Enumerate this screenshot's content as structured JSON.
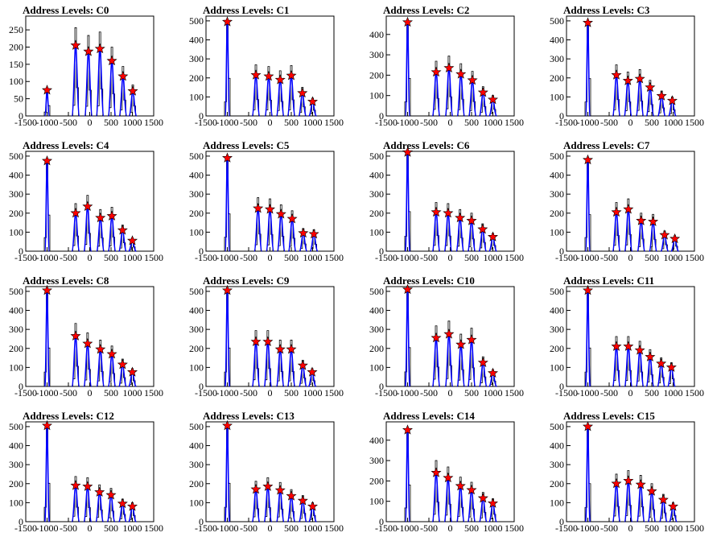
{
  "chart_data": [
    {
      "type": "bar",
      "title": "Address Levels: C0",
      "xlim": [
        -1500,
        1500
      ],
      "ylim": [
        0,
        290
      ],
      "yticks": [
        0,
        50,
        100,
        150,
        200,
        250
      ],
      "xticks": [
        -1500,
        -1000,
        -500,
        0,
        500,
        1000,
        1500
      ],
      "peaks": [
        {
          "x": -1000,
          "y": 75
        },
        {
          "x": -330,
          "y": 205
        },
        {
          "x": -30,
          "y": 187
        },
        {
          "x": 240,
          "y": 195
        },
        {
          "x": 520,
          "y": 160
        },
        {
          "x": 780,
          "y": 115
        },
        {
          "x": 1010,
          "y": 72
        }
      ]
    },
    {
      "type": "bar",
      "title": "Address Levels: C1",
      "xlim": [
        -1500,
        1500
      ],
      "ylim": [
        0,
        525
      ],
      "yticks": [
        0,
        100,
        200,
        300,
        400,
        500
      ],
      "xticks": [
        -1500,
        -1000,
        -500,
        0,
        500,
        1000,
        1500
      ],
      "peaks": [
        {
          "x": -1000,
          "y": 495
        },
        {
          "x": -330,
          "y": 215
        },
        {
          "x": -30,
          "y": 208
        },
        {
          "x": 240,
          "y": 190
        },
        {
          "x": 500,
          "y": 212
        },
        {
          "x": 760,
          "y": 120
        },
        {
          "x": 1000,
          "y": 75
        }
      ]
    },
    {
      "type": "bar",
      "title": "Address Levels: C2",
      "xlim": [
        -1500,
        1500
      ],
      "ylim": [
        0,
        490
      ],
      "yticks": [
        0,
        100,
        200,
        300,
        400
      ],
      "xticks": [
        -1500,
        -1000,
        -500,
        0,
        500,
        1000,
        1500
      ],
      "peaks": [
        {
          "x": -1000,
          "y": 460
        },
        {
          "x": -330,
          "y": 215
        },
        {
          "x": -30,
          "y": 235
        },
        {
          "x": 250,
          "y": 205
        },
        {
          "x": 520,
          "y": 175
        },
        {
          "x": 770,
          "y": 115
        },
        {
          "x": 1000,
          "y": 80
        }
      ]
    },
    {
      "type": "bar",
      "title": "Address Levels: C3",
      "xlim": [
        -1500,
        1500
      ],
      "ylim": [
        0,
        525
      ],
      "yticks": [
        0,
        100,
        200,
        300,
        400,
        500
      ],
      "xticks": [
        -1500,
        -1000,
        -500,
        0,
        500,
        1000,
        1500
      ],
      "peaks": [
        {
          "x": -1000,
          "y": 490
        },
        {
          "x": -330,
          "y": 215
        },
        {
          "x": -60,
          "y": 185
        },
        {
          "x": 220,
          "y": 195
        },
        {
          "x": 460,
          "y": 150
        },
        {
          "x": 730,
          "y": 105
        },
        {
          "x": 980,
          "y": 80
        }
      ]
    },
    {
      "type": "bar",
      "title": "Address Levels: C4",
      "xlim": [
        -1500,
        1500
      ],
      "ylim": [
        0,
        525
      ],
      "yticks": [
        0,
        100,
        200,
        300,
        400,
        500
      ],
      "xticks": [
        -1500,
        -1000,
        -500,
        0,
        500,
        1000,
        1500
      ],
      "peaks": [
        {
          "x": -1000,
          "y": 475
        },
        {
          "x": -330,
          "y": 200
        },
        {
          "x": -50,
          "y": 235
        },
        {
          "x": 250,
          "y": 175
        },
        {
          "x": 520,
          "y": 185
        },
        {
          "x": 770,
          "y": 110
        },
        {
          "x": 1000,
          "y": 55
        }
      ]
    },
    {
      "type": "bar",
      "title": "Address Levels: C5",
      "xlim": [
        -1500,
        1500
      ],
      "ylim": [
        0,
        525
      ],
      "yticks": [
        0,
        100,
        200,
        300,
        400,
        500
      ],
      "xticks": [
        -1500,
        -1000,
        -500,
        0,
        500,
        1000,
        1500
      ],
      "peaks": [
        {
          "x": -1000,
          "y": 490
        },
        {
          "x": -280,
          "y": 225
        },
        {
          "x": 0,
          "y": 220
        },
        {
          "x": 260,
          "y": 195
        },
        {
          "x": 520,
          "y": 170
        },
        {
          "x": 780,
          "y": 95
        },
        {
          "x": 1030,
          "y": 90
        }
      ]
    },
    {
      "type": "bar",
      "title": "Address Levels: C6",
      "xlim": [
        -1500,
        1500
      ],
      "ylim": [
        0,
        525
      ],
      "yticks": [
        0,
        100,
        200,
        300,
        400,
        500
      ],
      "xticks": [
        -1500,
        -1000,
        -500,
        0,
        500,
        1000,
        1500
      ],
      "peaks": [
        {
          "x": -1000,
          "y": 520
        },
        {
          "x": -330,
          "y": 205
        },
        {
          "x": -50,
          "y": 200
        },
        {
          "x": 230,
          "y": 175
        },
        {
          "x": 500,
          "y": 160
        },
        {
          "x": 760,
          "y": 115
        },
        {
          "x": 1000,
          "y": 75
        }
      ]
    },
    {
      "type": "bar",
      "title": "Address Levels: C7",
      "xlim": [
        -1500,
        1500
      ],
      "ylim": [
        0,
        525
      ],
      "yticks": [
        0,
        100,
        200,
        300,
        400,
        500
      ],
      "xticks": [
        -1500,
        -1000,
        -500,
        0,
        500,
        1000,
        1500
      ],
      "peaks": [
        {
          "x": -1000,
          "y": 480
        },
        {
          "x": -330,
          "y": 205
        },
        {
          "x": -50,
          "y": 220
        },
        {
          "x": 250,
          "y": 160
        },
        {
          "x": 530,
          "y": 155
        },
        {
          "x": 800,
          "y": 85
        },
        {
          "x": 1040,
          "y": 65
        }
      ]
    },
    {
      "type": "bar",
      "title": "Address Levels: C8",
      "xlim": [
        -1500,
        1500
      ],
      "ylim": [
        0,
        525
      ],
      "yticks": [
        0,
        100,
        200,
        300,
        400,
        500
      ],
      "xticks": [
        -1500,
        -1000,
        -500,
        0,
        500,
        1000,
        1500
      ],
      "peaks": [
        {
          "x": -1000,
          "y": 505
        },
        {
          "x": -330,
          "y": 265
        },
        {
          "x": -50,
          "y": 225
        },
        {
          "x": 250,
          "y": 195
        },
        {
          "x": 520,
          "y": 170
        },
        {
          "x": 770,
          "y": 115
        },
        {
          "x": 1000,
          "y": 75
        }
      ]
    },
    {
      "type": "bar",
      "title": "Address Levels: C9",
      "xlim": [
        -1500,
        1500
      ],
      "ylim": [
        0,
        525
      ],
      "yticks": [
        0,
        100,
        200,
        300,
        400,
        500
      ],
      "xticks": [
        -1500,
        -1000,
        -500,
        0,
        500,
        1000,
        1500
      ],
      "peaks": [
        {
          "x": -1000,
          "y": 505
        },
        {
          "x": -330,
          "y": 235
        },
        {
          "x": -50,
          "y": 235
        },
        {
          "x": 240,
          "y": 195
        },
        {
          "x": 500,
          "y": 195
        },
        {
          "x": 770,
          "y": 110
        },
        {
          "x": 990,
          "y": 75
        }
      ]
    },
    {
      "type": "bar",
      "title": "Address Levels: C10",
      "xlim": [
        -1500,
        1500
      ],
      "ylim": [
        0,
        525
      ],
      "yticks": [
        0,
        100,
        200,
        300,
        400,
        500
      ],
      "xticks": [
        -1500,
        -1000,
        -500,
        0,
        500,
        1000,
        1500
      ],
      "peaks": [
        {
          "x": -1000,
          "y": 510
        },
        {
          "x": -330,
          "y": 255
        },
        {
          "x": -30,
          "y": 275
        },
        {
          "x": 250,
          "y": 220
        },
        {
          "x": 500,
          "y": 245
        },
        {
          "x": 770,
          "y": 125
        },
        {
          "x": 1000,
          "y": 70
        }
      ]
    },
    {
      "type": "bar",
      "title": "Address Levels: C11",
      "xlim": [
        -1500,
        1500
      ],
      "ylim": [
        0,
        525
      ],
      "yticks": [
        0,
        100,
        200,
        300,
        400,
        500
      ],
      "xticks": [
        -1500,
        -1000,
        -500,
        0,
        500,
        1000,
        1500
      ],
      "peaks": [
        {
          "x": -1000,
          "y": 505
        },
        {
          "x": -330,
          "y": 210
        },
        {
          "x": -50,
          "y": 210
        },
        {
          "x": 220,
          "y": 190
        },
        {
          "x": 460,
          "y": 155
        },
        {
          "x": 720,
          "y": 120
        },
        {
          "x": 960,
          "y": 100
        }
      ]
    },
    {
      "type": "bar",
      "title": "Address Levels: C12",
      "xlim": [
        -1500,
        1500
      ],
      "ylim": [
        0,
        525
      ],
      "yticks": [
        0,
        100,
        200,
        300,
        400,
        500
      ],
      "xticks": [
        -1500,
        -1000,
        -500,
        0,
        500,
        1000,
        1500
      ],
      "peaks": [
        {
          "x": -1000,
          "y": 505
        },
        {
          "x": -330,
          "y": 190
        },
        {
          "x": -50,
          "y": 185
        },
        {
          "x": 230,
          "y": 155
        },
        {
          "x": 500,
          "y": 140
        },
        {
          "x": 770,
          "y": 95
        },
        {
          "x": 1000,
          "y": 80
        }
      ]
    },
    {
      "type": "bar",
      "title": "Address Levels: C13",
      "xlim": [
        -1500,
        1500
      ],
      "ylim": [
        0,
        525
      ],
      "yticks": [
        0,
        100,
        200,
        300,
        400,
        500
      ],
      "xticks": [
        -1500,
        -1000,
        -500,
        0,
        500,
        1000,
        1500
      ],
      "peaks": [
        {
          "x": -1000,
          "y": 505
        },
        {
          "x": -330,
          "y": 170
        },
        {
          "x": -50,
          "y": 185
        },
        {
          "x": 240,
          "y": 165
        },
        {
          "x": 500,
          "y": 135
        },
        {
          "x": 770,
          "y": 110
        },
        {
          "x": 1000,
          "y": 80
        }
      ]
    },
    {
      "type": "bar",
      "title": "Address Levels: C14",
      "xlim": [
        -1500,
        1500
      ],
      "ylim": [
        0,
        490
      ],
      "yticks": [
        0,
        100,
        200,
        300,
        400
      ],
      "xticks": [
        -1500,
        -1000,
        -500,
        0,
        500,
        1000,
        1500
      ],
      "peaks": [
        {
          "x": -1000,
          "y": 450
        },
        {
          "x": -330,
          "y": 240
        },
        {
          "x": -50,
          "y": 215
        },
        {
          "x": 240,
          "y": 175
        },
        {
          "x": 500,
          "y": 155
        },
        {
          "x": 770,
          "y": 115
        },
        {
          "x": 1000,
          "y": 90
        }
      ]
    },
    {
      "type": "bar",
      "title": "Address Levels: C15",
      "xlim": [
        -1500,
        1500
      ],
      "ylim": [
        0,
        525
      ],
      "yticks": [
        0,
        100,
        200,
        300,
        400,
        500
      ],
      "xticks": [
        -1500,
        -1000,
        -500,
        0,
        500,
        1000,
        1500
      ],
      "peaks": [
        {
          "x": -1000,
          "y": 500
        },
        {
          "x": -330,
          "y": 200
        },
        {
          "x": -50,
          "y": 215
        },
        {
          "x": 240,
          "y": 195
        },
        {
          "x": 500,
          "y": 160
        },
        {
          "x": 770,
          "y": 115
        },
        {
          "x": 1000,
          "y": 80
        }
      ]
    }
  ],
  "colors": {
    "histogram": "#000000",
    "fit": "#0000ff",
    "marker": "#ff0000",
    "frame": "#000000"
  }
}
